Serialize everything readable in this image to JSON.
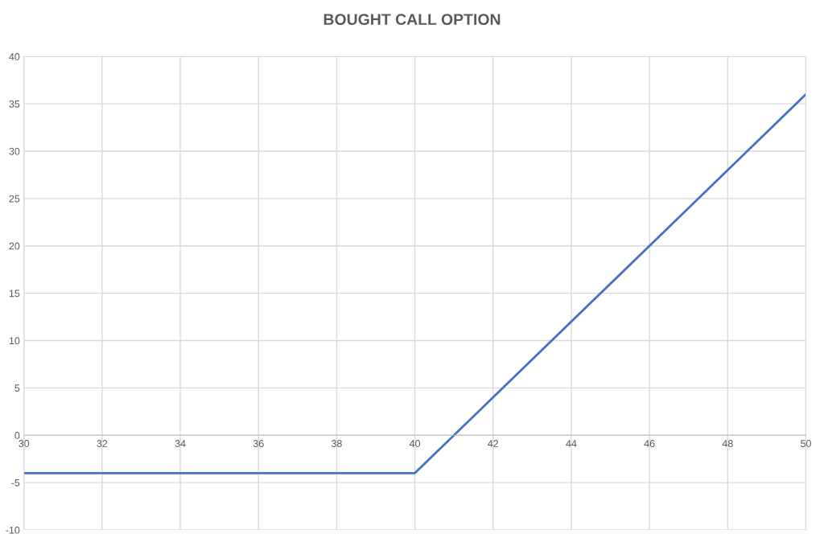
{
  "chart_data": {
    "type": "line",
    "title": "BOUGHT CALL OPTION",
    "x": [
      30,
      40,
      50
    ],
    "series": [
      {
        "color": "#4472c4",
        "values": [
          -4,
          -4,
          36
        ]
      }
    ],
    "xlim": [
      30,
      50
    ],
    "xticks": [
      30,
      32,
      34,
      36,
      38,
      40,
      42,
      44,
      46,
      48,
      50
    ],
    "ylim": [
      -10,
      40
    ],
    "yticks": [
      -10,
      -5,
      0,
      5,
      10,
      15,
      20,
      25,
      30,
      35,
      40
    ],
    "grid": true,
    "marker": "none",
    "line_style": "solid",
    "legend": false
  }
}
